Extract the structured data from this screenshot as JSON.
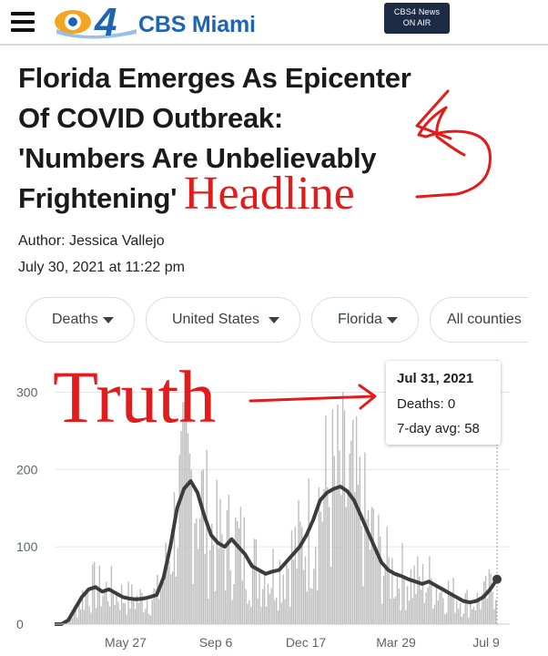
{
  "header": {
    "logo_number": "4",
    "logo_text": "CBS Miami",
    "onair_line1": "CBS4 News",
    "onair_line2": "ON AIR"
  },
  "article": {
    "headline_lines": [
      "Florida Emerges As Epicenter",
      "Of COVID Outbreak:",
      "'Numbers Are Unbelievably",
      "Frightening'"
    ],
    "author": "Author: Jessica Vallejo",
    "date": "July 30, 2021 at 11:22 pm"
  },
  "annotations": {
    "headline_label": "Headline",
    "truth_label": "Truth",
    "color": "#e21b1b"
  },
  "filters": [
    {
      "label": "Deaths",
      "has_arrow": true
    },
    {
      "label": "United States",
      "has_arrow": true
    },
    {
      "label": "Florida",
      "has_arrow": true
    },
    {
      "label": "All counties",
      "has_arrow": false
    }
  ],
  "tooltip": {
    "date": "Jul 31, 2021",
    "deaths": "Deaths: 0",
    "avg": "7-day avg: 58"
  },
  "chart_data": {
    "type": "bar",
    "metric": "Deaths",
    "ylim": [
      0,
      330
    ],
    "yticks": [
      0,
      100,
      200,
      300
    ],
    "xtick_labels": [
      "May 27",
      "Sep 6",
      "Dec 17",
      "Mar 29",
      "Jul 9"
    ],
    "bar_color": "#bdbdbd",
    "avg_color": "#3c3c3c",
    "grid": true,
    "series": [
      {
        "name": "7-day avg",
        "values": [
          0,
          0,
          5,
          20,
          35,
          45,
          48,
          42,
          45,
          40,
          35,
          33,
          32,
          33,
          35,
          38,
          60,
          100,
          150,
          175,
          185,
          170,
          140,
          115,
          105,
          100,
          110,
          100,
          90,
          75,
          70,
          65,
          68,
          70,
          80,
          90,
          100,
          115,
          135,
          160,
          170,
          175,
          178,
          172,
          160,
          140,
          120,
          100,
          80,
          70,
          65,
          62,
          58,
          55,
          52,
          55,
          50,
          45,
          40,
          35,
          30,
          28,
          30,
          35,
          45,
          58
        ]
      }
    ]
  }
}
